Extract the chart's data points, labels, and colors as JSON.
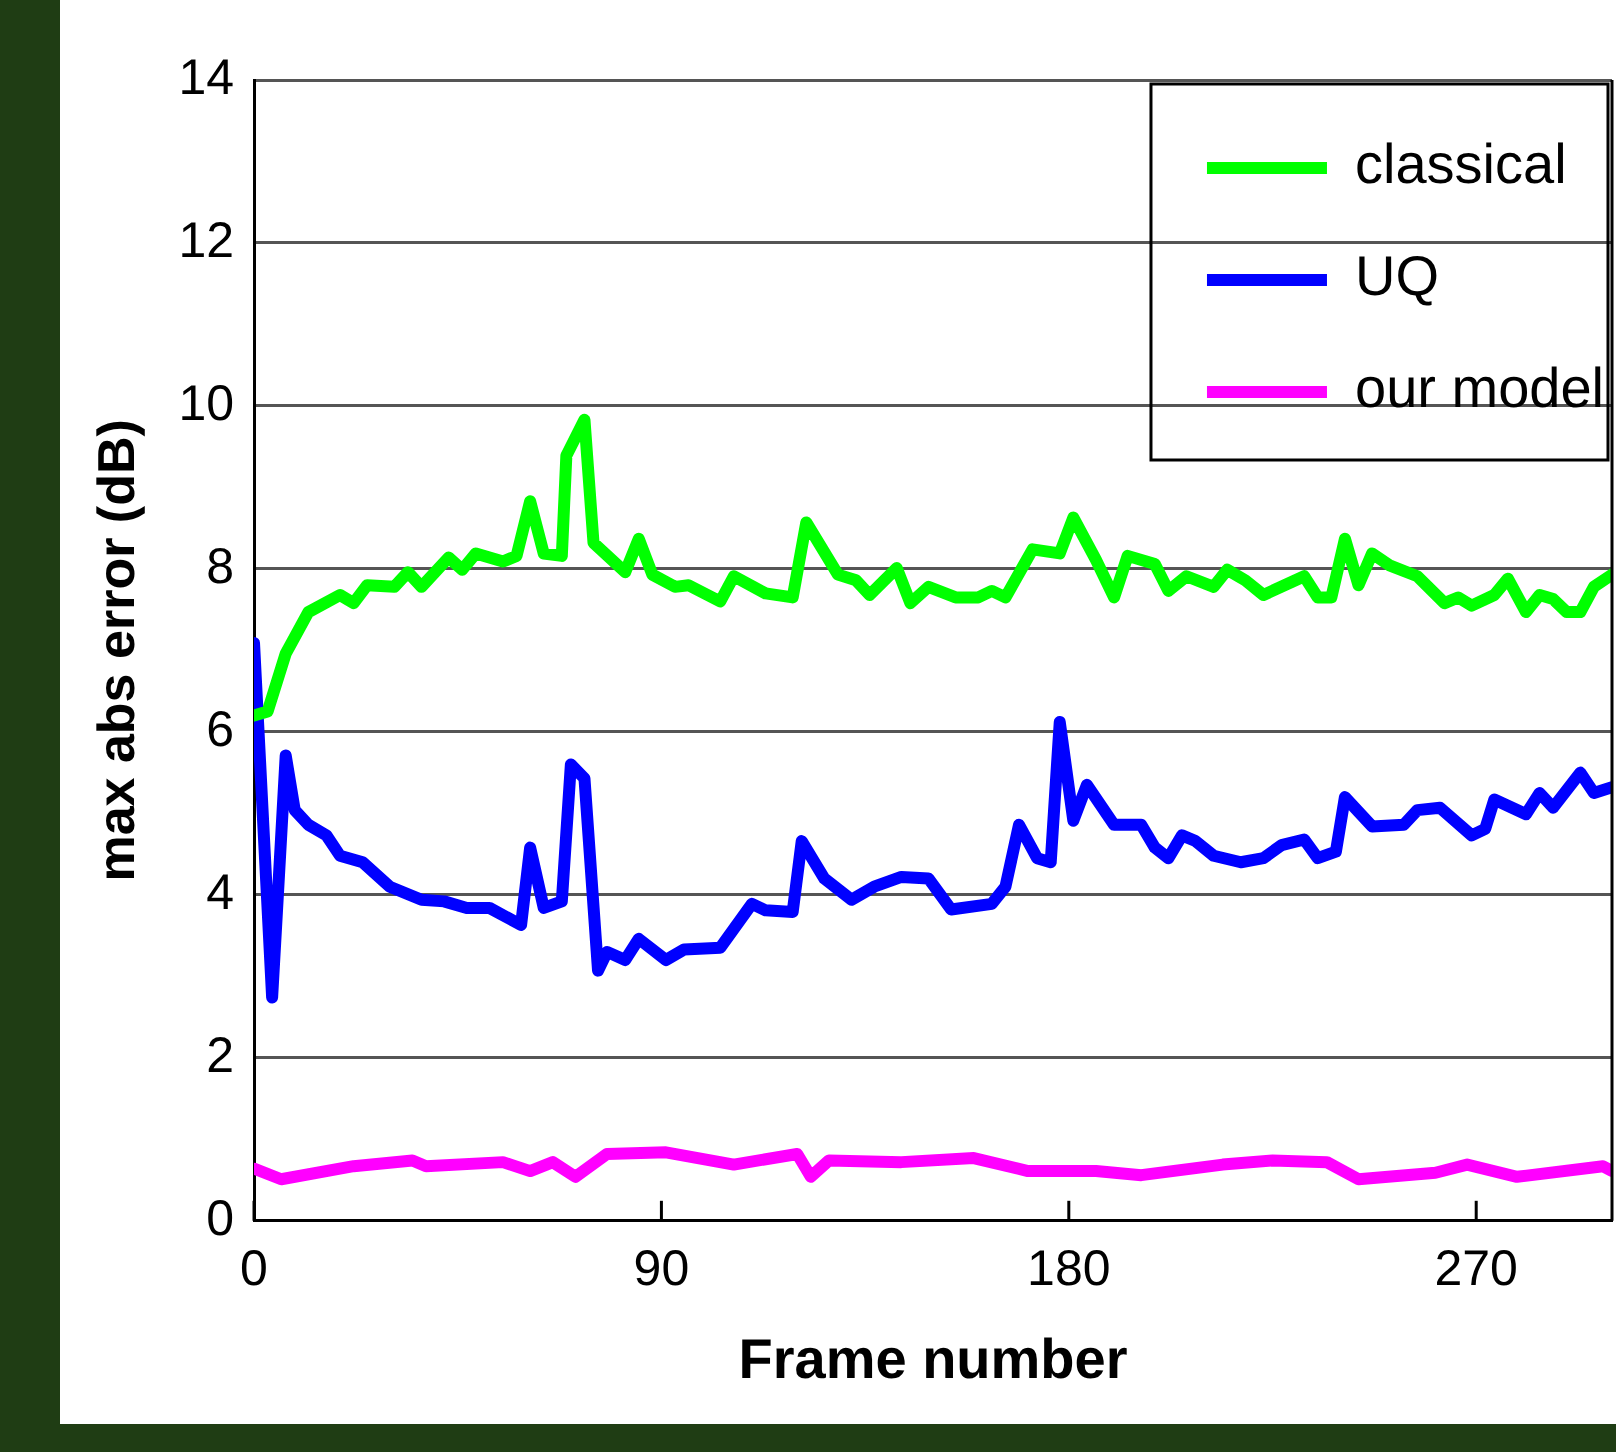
{
  "chart_data": {
    "type": "line",
    "xlabel": "Frame number",
    "ylabel": "max abs error (dB)",
    "xlim": [
      0,
      300
    ],
    "xticks": [
      0,
      90,
      180,
      270
    ],
    "ylim": [
      0,
      14
    ],
    "yticks": [
      0,
      2,
      4,
      6,
      8,
      10,
      12,
      14
    ],
    "grid": "y",
    "legend": "top right",
    "marker": "none",
    "line_style": "solid",
    "series": [
      {
        "name": "classical",
        "color": "#00ff00",
        "x": [
          0,
          3,
          7,
          12,
          19,
          22,
          25,
          31,
          34,
          37,
          43,
          46,
          49,
          55,
          58,
          61,
          64,
          68,
          69,
          73,
          75,
          82,
          85,
          88,
          93,
          96,
          103,
          106,
          113,
          119,
          122,
          129,
          133,
          136,
          142,
          145,
          149,
          155,
          160,
          163,
          166,
          172,
          178,
          181,
          186,
          190,
          193,
          199,
          202,
          206,
          212,
          215,
          219,
          223,
          232,
          235,
          238,
          241,
          244,
          247,
          251,
          257,
          263,
          266,
          269,
          274,
          277,
          281,
          284,
          287,
          290,
          293,
          296,
          300
        ],
        "values": [
          6.2,
          6.25,
          6.96,
          7.47,
          7.68,
          7.58,
          7.8,
          7.78,
          7.96,
          7.78,
          8.14,
          7.99,
          8.19,
          8.09,
          8.16,
          8.83,
          8.19,
          8.16,
          9.39,
          9.83,
          8.32,
          7.96,
          8.37,
          7.93,
          7.78,
          7.8,
          7.6,
          7.91,
          7.7,
          7.65,
          8.57,
          7.93,
          7.86,
          7.68,
          8.01,
          7.58,
          7.78,
          7.65,
          7.65,
          7.73,
          7.65,
          8.24,
          8.19,
          8.63,
          8.11,
          7.65,
          8.16,
          8.06,
          7.73,
          7.91,
          7.78,
          7.99,
          7.86,
          7.68,
          7.91,
          7.65,
          7.65,
          8.37,
          7.8,
          8.19,
          8.04,
          7.91,
          7.58,
          7.65,
          7.55,
          7.68,
          7.88,
          7.47,
          7.68,
          7.63,
          7.47,
          7.47,
          7.78,
          7.93
        ]
      },
      {
        "name": "UQ",
        "color": "#0000ff",
        "x": [
          0,
          4,
          7,
          9,
          12,
          16,
          19,
          24,
          30,
          37,
          42,
          47,
          52,
          59,
          61,
          64,
          68,
          70,
          73,
          76,
          78,
          82,
          85,
          91,
          95,
          103,
          110,
          113,
          119,
          121,
          126,
          132,
          137,
          143,
          149,
          154,
          163,
          166,
          169,
          173,
          176,
          178,
          181,
          184,
          190,
          196,
          199,
          202,
          205,
          208,
          212,
          218,
          223,
          227,
          232,
          235,
          239,
          241,
          247,
          254,
          257,
          262,
          269,
          272,
          274,
          281,
          284,
          287,
          293,
          296,
          300
        ],
        "values": [
          7.09,
          2.74,
          5.71,
          5.04,
          4.86,
          4.73,
          4.48,
          4.4,
          4.1,
          3.94,
          3.92,
          3.84,
          3.84,
          3.63,
          4.58,
          3.84,
          3.92,
          5.6,
          5.43,
          3.07,
          3.3,
          3.2,
          3.46,
          3.2,
          3.33,
          3.35,
          3.89,
          3.81,
          3.79,
          4.66,
          4.2,
          3.94,
          4.1,
          4.22,
          4.2,
          3.82,
          3.89,
          4.1,
          4.86,
          4.45,
          4.4,
          6.12,
          4.91,
          5.35,
          4.86,
          4.86,
          4.58,
          4.45,
          4.73,
          4.66,
          4.48,
          4.4,
          4.45,
          4.61,
          4.68,
          4.45,
          4.53,
          5.2,
          4.84,
          4.86,
          5.04,
          5.07,
          4.73,
          4.81,
          5.17,
          4.99,
          5.25,
          5.07,
          5.5,
          5.25,
          5.32
        ]
      },
      {
        "name": "our model",
        "color": "#ff00ff",
        "x": [
          0,
          6,
          22,
          35,
          38,
          55,
          61,
          66,
          71,
          78,
          91,
          106,
          120,
          123,
          127,
          143,
          159,
          171,
          186,
          196,
          214,
          225,
          237,
          244,
          261,
          268,
          279,
          298,
          300
        ],
        "values": [
          0.64,
          0.51,
          0.67,
          0.74,
          0.67,
          0.72,
          0.61,
          0.72,
          0.54,
          0.82,
          0.84,
          0.69,
          0.82,
          0.54,
          0.74,
          0.72,
          0.77,
          0.61,
          0.61,
          0.56,
          0.69,
          0.74,
          0.72,
          0.51,
          0.59,
          0.69,
          0.54,
          0.67,
          0.61
        ]
      }
    ]
  }
}
